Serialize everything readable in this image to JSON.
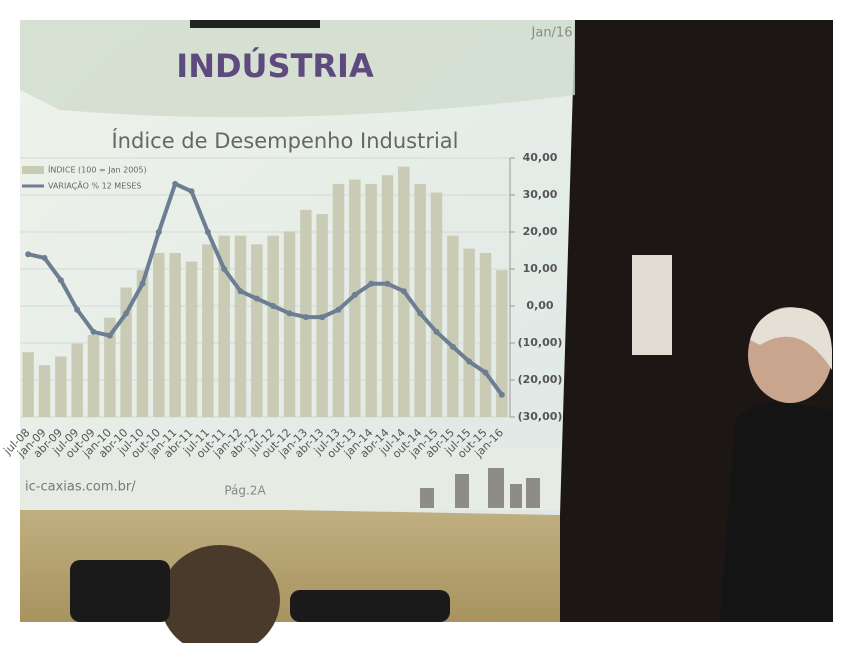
{
  "chart_data": {
    "type": "bar-line",
    "corner_label": "Jan/16",
    "title": "INDÚSTRIA",
    "subtitle": "Índice de Desempenho  Industrial",
    "footer_url": "ic-caxias.com.br/",
    "footer_page": "Pág.2A",
    "categories": [
      "jul-08",
      "jan-09",
      "abr-09",
      "jul-09",
      "out-09",
      "jan-10",
      "abr-10",
      "jul-10",
      "out-10",
      "jan-11",
      "abr-11",
      "jul-11",
      "out-11",
      "jan-12",
      "abr-12",
      "jul-12",
      "out-12",
      "jan-13",
      "abr-13",
      "jul-13",
      "out-13",
      "jan-14",
      "abr-14",
      "jul-14",
      "out-14",
      "jan-15",
      "abr-15",
      "jul-15",
      "out-15",
      "jan-16"
    ],
    "series": [
      {
        "name": "ÍNDICE (100 = Jan 2005)",
        "color": "#c9cbb4",
        "axis": "y",
        "values": [
          85,
          82,
          84,
          87,
          89,
          93,
          100,
          104,
          108,
          108,
          106,
          110,
          112,
          112,
          110,
          112,
          113,
          118,
          117,
          124,
          125,
          124,
          126,
          128,
          124,
          122,
          112,
          109,
          108,
          104
        ]
      },
      {
        "name": "VARIAÇÃO % 12 MESES",
        "color": "#6d7d92",
        "axis": "y2",
        "values": [
          14,
          13,
          7,
          -1,
          -7,
          -8,
          -2,
          6,
          20,
          33,
          31,
          20,
          10,
          4,
          2,
          0,
          -2,
          -3,
          -3,
          -1,
          3,
          6,
          6,
          4,
          -2,
          -7,
          -11,
          -15,
          -18,
          -24
        ]
      }
    ],
    "ylim": [
      70,
      130
    ],
    "y2lim": [
      -30,
      40
    ],
    "y2ticks": [
      {
        "value": 40,
        "label": "40,00"
      },
      {
        "value": 30,
        "label": "30,00"
      },
      {
        "value": 20,
        "label": "20,00"
      },
      {
        "value": 10,
        "label": "10,00"
      },
      {
        "value": 0,
        "label": "0,00"
      },
      {
        "value": -10,
        "label": "(10,00)"
      },
      {
        "value": -20,
        "label": "(20,00)"
      },
      {
        "value": -30,
        "label": "(30,00)"
      }
    ],
    "grid": true
  }
}
